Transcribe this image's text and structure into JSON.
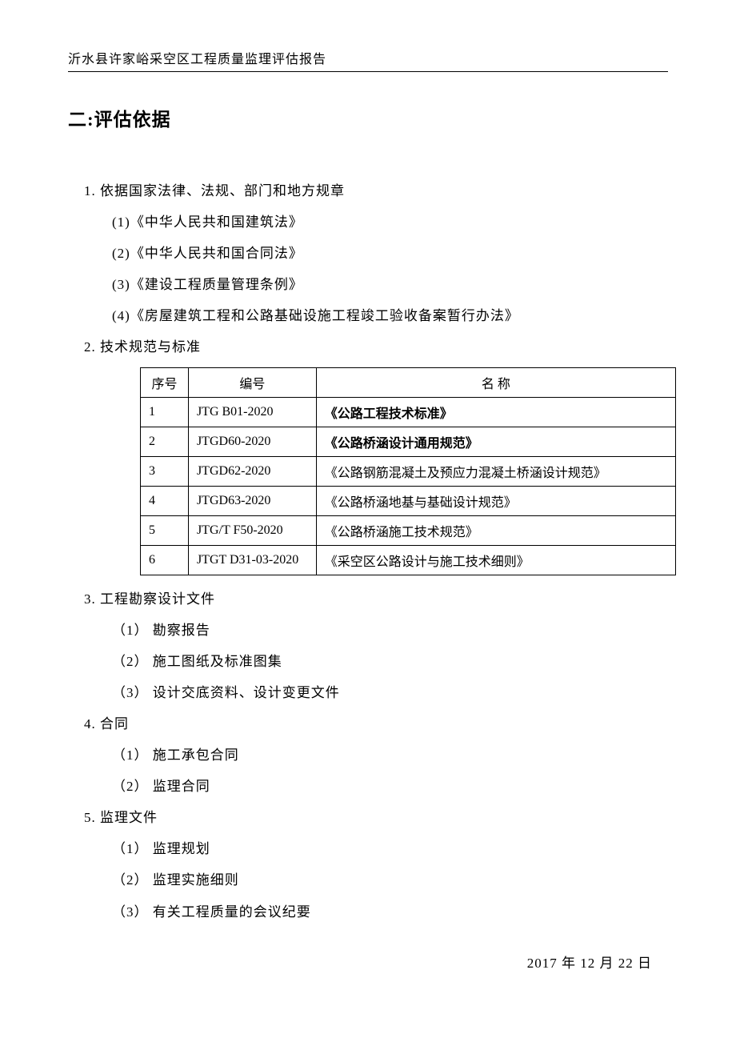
{
  "header": "沂水县许家峪采空区工程质量监理评估报告",
  "sectionTitle": "二:评估依据",
  "item1": {
    "title": "1. 依据国家法律、法规、部门和地方规章",
    "sub1": "(1)《中华人民共和国建筑法》",
    "sub2": "(2)《中华人民共和国合同法》",
    "sub3": "(3)《建设工程质量管理条例》",
    "sub4": "(4)《房屋建筑工程和公路基础设施工程竣工验收备案暂行办法》"
  },
  "item2": {
    "title": "2. 技术规范与标准"
  },
  "table": {
    "headers": {
      "seq": "序号",
      "code": "编号",
      "name": "名    称"
    },
    "rows": [
      {
        "seq": "1",
        "code": "JTG B01-2020",
        "name": "《公路工程技术标准》",
        "bold": true
      },
      {
        "seq": "2",
        "code": "JTGD60-2020",
        "name": "《公路桥涵设计通用规范》",
        "bold": true
      },
      {
        "seq": "3",
        "code": "JTGD62-2020",
        "name": "《公路钢筋混凝土及预应力混凝土桥涵设计规范》",
        "bold": false
      },
      {
        "seq": "4",
        "code": "JTGD63-2020",
        "name": "《公路桥涵地基与基础设计规范》",
        "bold": false
      },
      {
        "seq": "5",
        "code": "JTG/T F50-2020",
        "name": "《公路桥涵施工技术规范》",
        "bold": false
      },
      {
        "seq": "6",
        "code": "JTGT D31-03-2020",
        "name": "《采空区公路设计与施工技术细则》",
        "bold": false
      }
    ]
  },
  "item3": {
    "title": "3. 工程勘察设计文件",
    "sub1": "（1） 勘察报告",
    "sub2": "（2） 施工图纸及标准图集",
    "sub3": "（3） 设计交底资料、设计变更文件"
  },
  "item4": {
    "title": "4.  合同",
    "sub1": "（1） 施工承包合同",
    "sub2": "（2） 监理合同"
  },
  "item5": {
    "title": "5.  监理文件",
    "sub1": "（1） 监理规划",
    "sub2": "（2） 监理实施细则",
    "sub3": "（3） 有关工程质量的会议纪要"
  },
  "date": "2017 年 12 月 22 日"
}
